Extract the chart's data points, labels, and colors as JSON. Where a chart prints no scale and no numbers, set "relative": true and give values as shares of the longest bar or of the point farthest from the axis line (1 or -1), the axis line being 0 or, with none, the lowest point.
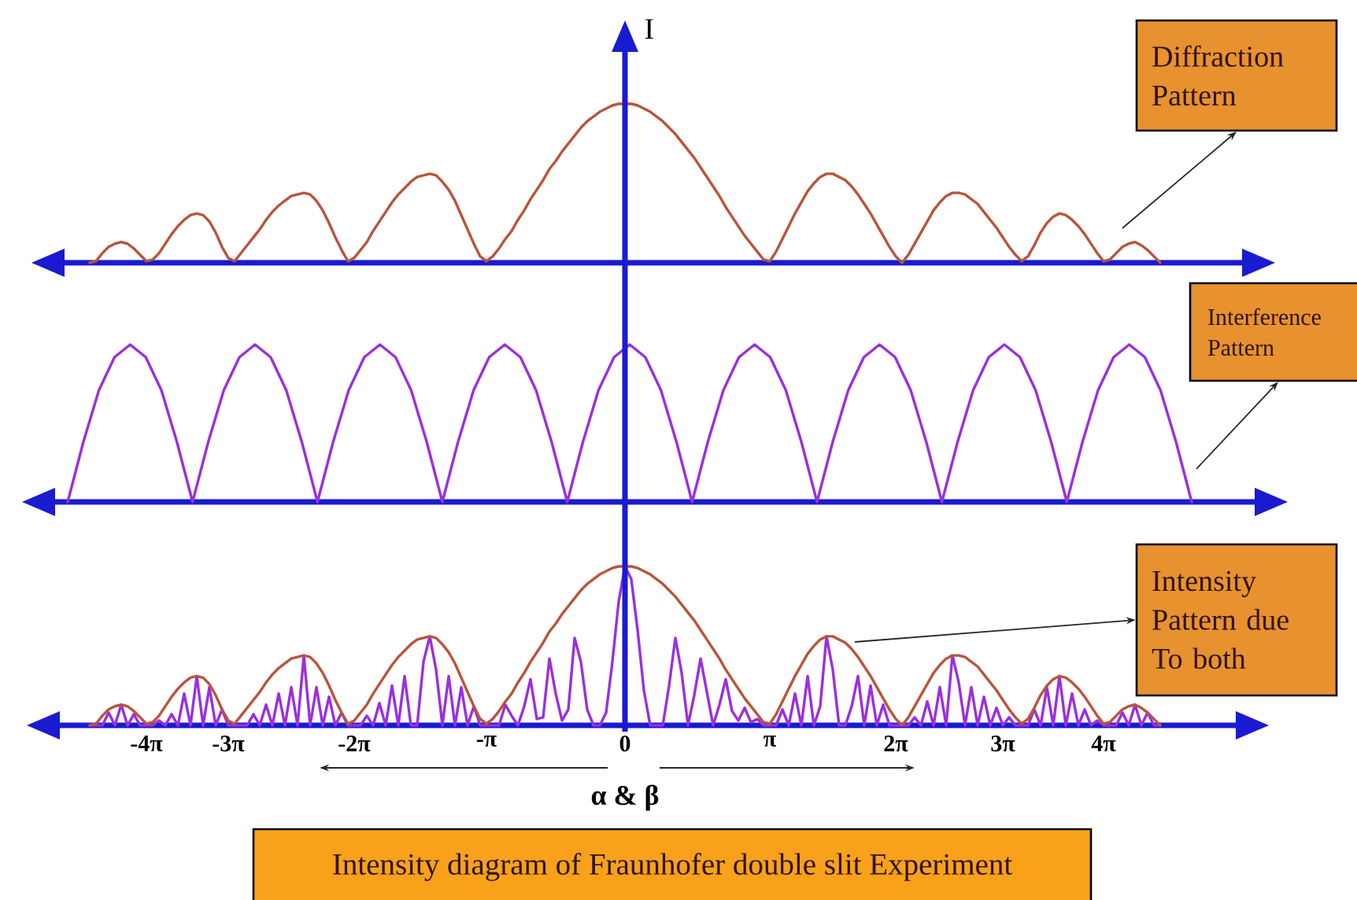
{
  "chart_data": [
    {
      "type": "line",
      "ylabel": "I",
      "relative": true,
      "tick_labels": false,
      "categories": [
        null,
        null,
        null,
        null,
        null,
        null,
        null,
        null,
        null,
        null,
        null,
        null,
        null,
        null,
        null,
        null,
        null,
        null,
        null,
        null,
        null,
        null,
        null,
        null,
        null,
        null,
        null,
        null,
        null,
        null,
        null,
        null,
        null,
        null,
        null,
        null,
        null,
        null,
        null,
        null,
        null,
        null,
        null,
        null,
        null,
        null,
        null,
        null,
        null,
        null,
        null,
        null,
        null,
        null,
        null,
        null,
        null,
        null,
        null,
        null,
        null,
        null,
        null,
        null,
        null,
        null,
        null,
        null,
        null,
        null,
        null,
        null,
        null,
        null,
        null,
        null,
        null,
        null,
        null,
        null,
        null,
        null,
        null,
        null,
        null,
        null,
        null,
        null,
        null,
        null,
        null,
        null,
        null,
        null,
        null,
        null,
        null,
        null,
        null,
        null,
        null,
        null,
        null,
        null,
        null,
        null,
        null,
        null,
        null,
        null,
        null,
        null,
        null,
        null,
        null,
        null,
        null,
        null,
        null,
        null,
        null,
        null,
        null,
        null,
        null,
        null,
        null,
        null,
        null,
        null,
        null,
        null,
        null,
        null,
        null,
        null,
        null,
        null,
        null,
        null,
        null,
        null,
        null,
        null,
        null,
        null,
        null,
        null,
        null,
        null,
        null,
        null,
        null,
        null,
        null,
        null,
        null,
        null,
        null,
        null,
        null,
        null,
        null,
        null,
        null,
        null,
        null,
        null,
        null,
        null,
        null
      ],
      "annotations": [
        "Diffraction Pattern"
      ],
      "series": [
        {
          "color": "#b8553c",
          "values": [
            0,
            0.01,
            0.06,
            0.1,
            0.12,
            0.13,
            0.12,
            0.09,
            0.05,
            0.01,
            0.02,
            0.06,
            0.12,
            0.18,
            0.23,
            0.27,
            0.3,
            0.31,
            0.3,
            0.26,
            0.19,
            0.1,
            0.03,
            0.01,
            0.06,
            0.11,
            0.16,
            0.21,
            0.27,
            0.32,
            0.36,
            0.39,
            0.42,
            0.43,
            0.44,
            0.43,
            0.39,
            0.33,
            0.25,
            0.16,
            0.08,
            0.01,
            0.03,
            0.08,
            0.13,
            0.2,
            0.26,
            0.32,
            0.38,
            0.43,
            0.47,
            0.51,
            0.54,
            0.55,
            0.56,
            0.55,
            0.51,
            0.46,
            0.39,
            0.3,
            0.21,
            0.12,
            0.04,
            0.01,
            0.04,
            0.09,
            0.15,
            0.2,
            0.27,
            0.33,
            0.4,
            0.46,
            0.52,
            0.59,
            0.64,
            0.7,
            0.75,
            0.8,
            0.85,
            0.89,
            0.92,
            0.95,
            0.97,
            0.99,
            1,
            1,
            1,
            0.99,
            0.97,
            0.95,
            0.92,
            0.89,
            0.85,
            0.81,
            0.76,
            0.71,
            0.66,
            0.6,
            0.54,
            0.48,
            0.42,
            0.35,
            0.29,
            0.23,
            0.17,
            0.12,
            0.07,
            0.02,
            0.01,
            0.07,
            0.15,
            0.23,
            0.31,
            0.38,
            0.45,
            0.5,
            0.54,
            0.56,
            0.56,
            0.54,
            0.52,
            0.48,
            0.43,
            0.37,
            0.31,
            0.24,
            0.17,
            0.1,
            0.04,
            0,
            0.05,
            0.12,
            0.19,
            0.26,
            0.33,
            0.38,
            0.42,
            0.44,
            0.44,
            0.43,
            0.4,
            0.37,
            0.32,
            0.27,
            0.22,
            0.16,
            0.1,
            0.05,
            0.01,
            0.04,
            0.11,
            0.19,
            0.25,
            0.29,
            0.31,
            0.3,
            0.27,
            0.23,
            0.18,
            0.12,
            0.06,
            0.01,
            0.02,
            0.06,
            0.1,
            0.12,
            0.13,
            0.11,
            0.08,
            0.04,
            0
          ]
        }
      ]
    },
    {
      "type": "line",
      "relative": true,
      "tick_labels": false,
      "categories": [
        null,
        null,
        null,
        null,
        null,
        null,
        null,
        null,
        null,
        null,
        null,
        null,
        null,
        null,
        null,
        null,
        null,
        null,
        null,
        null,
        null,
        null,
        null,
        null,
        null,
        null,
        null,
        null,
        null,
        null,
        null,
        null,
        null,
        null,
        null,
        null,
        null,
        null,
        null,
        null,
        null,
        null,
        null,
        null,
        null,
        null,
        null,
        null,
        null,
        null,
        null,
        null,
        null,
        null,
        null,
        null,
        null,
        null,
        null,
        null,
        null,
        null,
        null,
        null,
        null,
        null,
        null,
        null,
        null,
        null,
        null,
        null,
        null
      ],
      "annotations": [
        "Interference Pattern"
      ],
      "series": [
        {
          "color": "#9a2fe0",
          "values": [
            0,
            0.38,
            0.71,
            0.92,
            1,
            0.92,
            0.71,
            0.38,
            0,
            0.38,
            0.71,
            0.92,
            1,
            0.92,
            0.71,
            0.38,
            0,
            0.38,
            0.71,
            0.92,
            1,
            0.92,
            0.71,
            0.38,
            0,
            0.38,
            0.71,
            0.92,
            1,
            0.92,
            0.71,
            0.38,
            0,
            0.38,
            0.71,
            0.92,
            1,
            0.92,
            0.71,
            0.38,
            0,
            0.38,
            0.71,
            0.92,
            1,
            0.92,
            0.71,
            0.38,
            0,
            0.38,
            0.71,
            0.92,
            1,
            0.92,
            0.71,
            0.38,
            0,
            0.38,
            0.71,
            0.92,
            1,
            0.92,
            0.71,
            0.38,
            0,
            0.38,
            0.71,
            0.92,
            1,
            0.92,
            0.71,
            0.38,
            0
          ]
        }
      ]
    },
    {
      "type": "line",
      "relative": true,
      "xlabel": "α & β",
      "tick_labels": "x",
      "categories": [
        null,
        null,
        null,
        null,
        null,
        null,
        null,
        null,
        null,
        "-4π",
        null,
        null,
        null,
        null,
        null,
        null,
        null,
        null,
        null,
        null,
        null,
        null,
        "-3π",
        null,
        null,
        null,
        null,
        null,
        null,
        null,
        null,
        null,
        null,
        null,
        null,
        null,
        null,
        null,
        null,
        null,
        null,
        null,
        "-2π",
        null,
        null,
        null,
        null,
        null,
        null,
        null,
        null,
        null,
        null,
        null,
        null,
        null,
        null,
        null,
        null,
        null,
        null,
        null,
        null,
        "-π",
        null,
        null,
        null,
        null,
        null,
        null,
        null,
        null,
        null,
        null,
        null,
        null,
        null,
        null,
        null,
        null,
        null,
        null,
        null,
        null,
        null,
        "0",
        null,
        null,
        null,
        null,
        null,
        null,
        null,
        null,
        null,
        null,
        null,
        null,
        null,
        null,
        null,
        null,
        null,
        null,
        null,
        null,
        null,
        null,
        "π",
        null,
        null,
        null,
        null,
        null,
        null,
        null,
        null,
        null,
        null,
        null,
        null,
        null,
        null,
        null,
        null,
        null,
        null,
        null,
        "2π",
        null,
        null,
        null,
        null,
        null,
        null,
        null,
        null,
        null,
        null,
        null,
        null,
        null,
        null,
        null,
        null,
        "3π",
        null,
        null,
        null,
        null,
        null,
        null,
        null,
        null,
        null,
        null,
        null,
        null,
        null,
        null,
        null,
        "4π",
        null,
        null,
        null,
        null,
        null,
        null,
        null,
        null,
        null
      ],
      "annotations": [
        "Intensity Pattern due To both",
        "Intensity diagram of Fraunhofer double slit Experiment"
      ],
      "series": [
        {
          "color": "#9a2fe0",
          "values": [
            0,
            0,
            0,
            0.08,
            0,
            0.13,
            0,
            0.07,
            0,
            0,
            0,
            0.03,
            0,
            0.07,
            0,
            0.2,
            0,
            0.31,
            0,
            0.24,
            0,
            0.1,
            0,
            0,
            0,
            0,
            0.07,
            0,
            0.13,
            0,
            0.2,
            0,
            0.24,
            0,
            0.44,
            0,
            0.24,
            0,
            0.18,
            0,
            0.08,
            0,
            0,
            0,
            0.06,
            0,
            0.14,
            0,
            0.25,
            0,
            0.31,
            0,
            0,
            0.4,
            0.56,
            0.35,
            0,
            0.31,
            0,
            0.24,
            0,
            0.12,
            0,
            0,
            0,
            0,
            0.13,
            0.06,
            0,
            0.12,
            0.29,
            0.04,
            0.05,
            0.42,
            0.2,
            0.03,
            0.1,
            0.55,
            0.4,
            0.1,
            0,
            0,
            0.08,
            0.4,
            0.78,
            1,
            0.92,
            0.6,
            0.22,
            0,
            0,
            0,
            0.25,
            0.55,
            0.33,
            0,
            0.19,
            0.42,
            0.21,
            0,
            0.13,
            0.29,
            0.09,
            0.03,
            0.11,
            0.02,
            0.04,
            0,
            0,
            0,
            0.1,
            0,
            0.2,
            0,
            0.31,
            0,
            0.12,
            0.56,
            0.35,
            0,
            0,
            0.12,
            0.31,
            0,
            0.25,
            0,
            0.13,
            0,
            0,
            0,
            0,
            0.05,
            0,
            0.15,
            0,
            0.24,
            0,
            0.44,
            0.27,
            0,
            0.24,
            0,
            0.18,
            0,
            0.11,
            0,
            0.05,
            0,
            0,
            0,
            0.1,
            0,
            0.24,
            0,
            0.31,
            0,
            0.2,
            0,
            0.1,
            0,
            0.03,
            0,
            0,
            0,
            0.08,
            0,
            0.13,
            0,
            0.08,
            0,
            0
          ]
        },
        {
          "color": "#b8553c",
          "values": [
            0,
            0.01,
            0.06,
            0.1,
            0.12,
            0.13,
            0.12,
            0.09,
            0.05,
            0.01,
            0.02,
            0.06,
            0.12,
            0.18,
            0.23,
            0.27,
            0.3,
            0.31,
            0.3,
            0.26,
            0.19,
            0.1,
            0.03,
            0.01,
            0.06,
            0.11,
            0.16,
            0.21,
            0.27,
            0.32,
            0.36,
            0.39,
            0.42,
            0.43,
            0.44,
            0.43,
            0.39,
            0.33,
            0.25,
            0.16,
            0.08,
            0.01,
            0.03,
            0.08,
            0.13,
            0.2,
            0.26,
            0.32,
            0.38,
            0.43,
            0.47,
            0.51,
            0.54,
            0.55,
            0.56,
            0.55,
            0.51,
            0.46,
            0.39,
            0.3,
            0.21,
            0.12,
            0.04,
            0.01,
            0.04,
            0.09,
            0.15,
            0.2,
            0.27,
            0.33,
            0.4,
            0.46,
            0.52,
            0.59,
            0.64,
            0.7,
            0.75,
            0.8,
            0.85,
            0.89,
            0.92,
            0.95,
            0.97,
            0.99,
            1,
            1,
            1,
            0.99,
            0.97,
            0.95,
            0.92,
            0.89,
            0.85,
            0.81,
            0.76,
            0.71,
            0.66,
            0.6,
            0.54,
            0.48,
            0.42,
            0.35,
            0.29,
            0.23,
            0.17,
            0.12,
            0.07,
            0.02,
            0.01,
            0.07,
            0.15,
            0.23,
            0.31,
            0.38,
            0.45,
            0.5,
            0.54,
            0.56,
            0.56,
            0.54,
            0.52,
            0.48,
            0.43,
            0.37,
            0.31,
            0.24,
            0.17,
            0.1,
            0.04,
            0,
            0.05,
            0.12,
            0.19,
            0.26,
            0.33,
            0.38,
            0.42,
            0.44,
            0.44,
            0.43,
            0.4,
            0.37,
            0.32,
            0.27,
            0.22,
            0.16,
            0.1,
            0.05,
            0.01,
            0.04,
            0.11,
            0.19,
            0.25,
            0.29,
            0.31,
            0.3,
            0.27,
            0.23,
            0.18,
            0.12,
            0.06,
            0.01,
            0.02,
            0.06,
            0.1,
            0.12,
            0.13,
            0.11,
            0.08,
            0.04,
            0
          ]
        }
      ]
    }
  ]
}
